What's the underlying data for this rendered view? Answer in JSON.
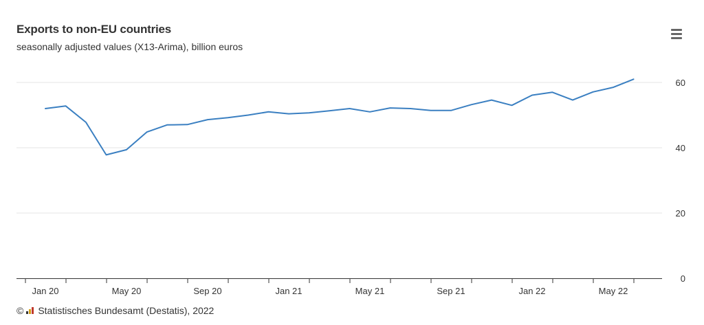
{
  "header": {
    "title": "Exports to non-EU countries",
    "subtitle": "seasonally adjusted values (X13-Arima), billion euros"
  },
  "menu": {
    "icon": "hamburger-menu-icon"
  },
  "credits": {
    "copyright": "©",
    "logo_icon": "destatis-logo-icon",
    "text": "Statistisches Bundesamt (Destatis), 2022"
  },
  "colors": {
    "line": "#3a7fc1",
    "grid": "#e6e6e6",
    "axis": "#333333",
    "text": "#333333"
  },
  "chart_data": {
    "type": "line",
    "title": "Exports to non-EU countries",
    "subtitle": "seasonally adjusted values (X13-Arima), billion euros",
    "xlabel": "",
    "ylabel": "",
    "ylim": [
      0,
      60
    ],
    "yticks": [
      0,
      20,
      40,
      60
    ],
    "y_axis_side": "right",
    "grid": true,
    "x_tick_labels": [
      {
        "label": "Jan 20",
        "index": 0
      },
      {
        "label": "May 20",
        "index": 4
      },
      {
        "label": "Sep 20",
        "index": 8
      },
      {
        "label": "Jan 21",
        "index": 12
      },
      {
        "label": "May 21",
        "index": 16
      },
      {
        "label": "Sep 21",
        "index": 20
      },
      {
        "label": "Jan 22",
        "index": 24
      },
      {
        "label": "May 22",
        "index": 28
      }
    ],
    "categories": [
      "Jan 20",
      "Feb 20",
      "Mar 20",
      "Apr 20",
      "May 20",
      "Jun 20",
      "Jul 20",
      "Aug 20",
      "Sep 20",
      "Oct 20",
      "Nov 20",
      "Dec 20",
      "Jan 21",
      "Feb 21",
      "Mar 21",
      "Apr 21",
      "May 21",
      "Jun 21",
      "Jul 21",
      "Aug 21",
      "Sep 21",
      "Oct 21",
      "Nov 21",
      "Dec 21",
      "Jan 22",
      "Feb 22",
      "Mar 22",
      "Apr 22",
      "May 22",
      "Jun 22"
    ],
    "values": [
      52.0,
      52.8,
      47.8,
      37.8,
      39.4,
      44.8,
      47.0,
      47.1,
      48.6,
      49.2,
      50.0,
      51.0,
      50.4,
      50.7,
      51.3,
      52.0,
      51.0,
      52.2,
      52.0,
      51.4,
      51.4,
      53.2,
      54.6,
      53.0,
      56.1,
      57.0,
      54.6,
      57.1,
      58.5,
      61.0
    ]
  }
}
